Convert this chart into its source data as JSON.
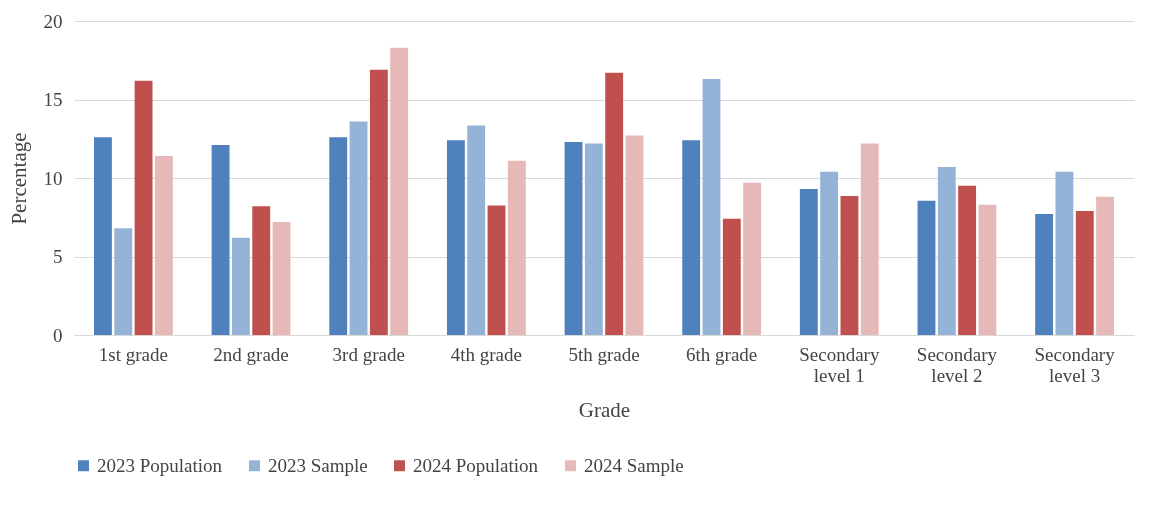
{
  "chart_data": {
    "type": "bar",
    "xlabel": "Grade",
    "ylabel": "Percentage",
    "categories": [
      "1st grade",
      "2nd grade",
      "3rd grade",
      "4th grade",
      "5th grade",
      "6th grade",
      "Secondary level 1",
      "Secondary level 2",
      "Secondary level 3"
    ],
    "series": [
      {
        "name": "2023 Population",
        "color": "#4f81bd",
        "values": [
          12.6,
          12.1,
          12.6,
          12.4,
          12.3,
          12.4,
          9.3,
          8.55,
          7.7
        ]
      },
      {
        "name": "2023 Sample",
        "color": "#95b3d7",
        "values": [
          6.8,
          6.2,
          13.6,
          13.35,
          12.2,
          16.3,
          10.4,
          10.7,
          10.4
        ]
      },
      {
        "name": "2024 Population",
        "color": "#c0504d",
        "values": [
          16.2,
          8.2,
          16.9,
          8.25,
          16.7,
          7.4,
          8.85,
          9.5,
          7.9
        ]
      },
      {
        "name": "2024 Sample",
        "color": "#e6b9b8",
        "values": [
          11.4,
          7.2,
          18.3,
          11.1,
          12.7,
          9.7,
          12.2,
          8.3,
          8.8
        ]
      }
    ],
    "ylim": [
      0,
      20
    ],
    "yticks": [
      0,
      5,
      10,
      15,
      20
    ],
    "grid": "y",
    "legend": "bottom"
  }
}
